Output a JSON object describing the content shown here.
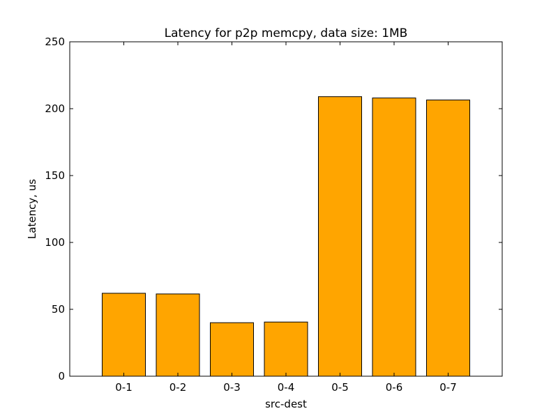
{
  "chart_data": {
    "type": "bar",
    "title": "Latency for p2p memcpy, data size: 1MB",
    "xlabel": "src-dest",
    "ylabel": "Latency, us",
    "categories": [
      "0-1",
      "0-2",
      "0-3",
      "0-4",
      "0-5",
      "0-6",
      "0-7"
    ],
    "values": [
      62,
      61.5,
      40,
      40.5,
      209,
      208,
      206.5
    ],
    "ylim": [
      0,
      250
    ],
    "yticks": [
      0,
      50,
      100,
      150,
      200,
      250
    ],
    "grid": false,
    "legend": "none",
    "bar_color": "#ffa500"
  }
}
